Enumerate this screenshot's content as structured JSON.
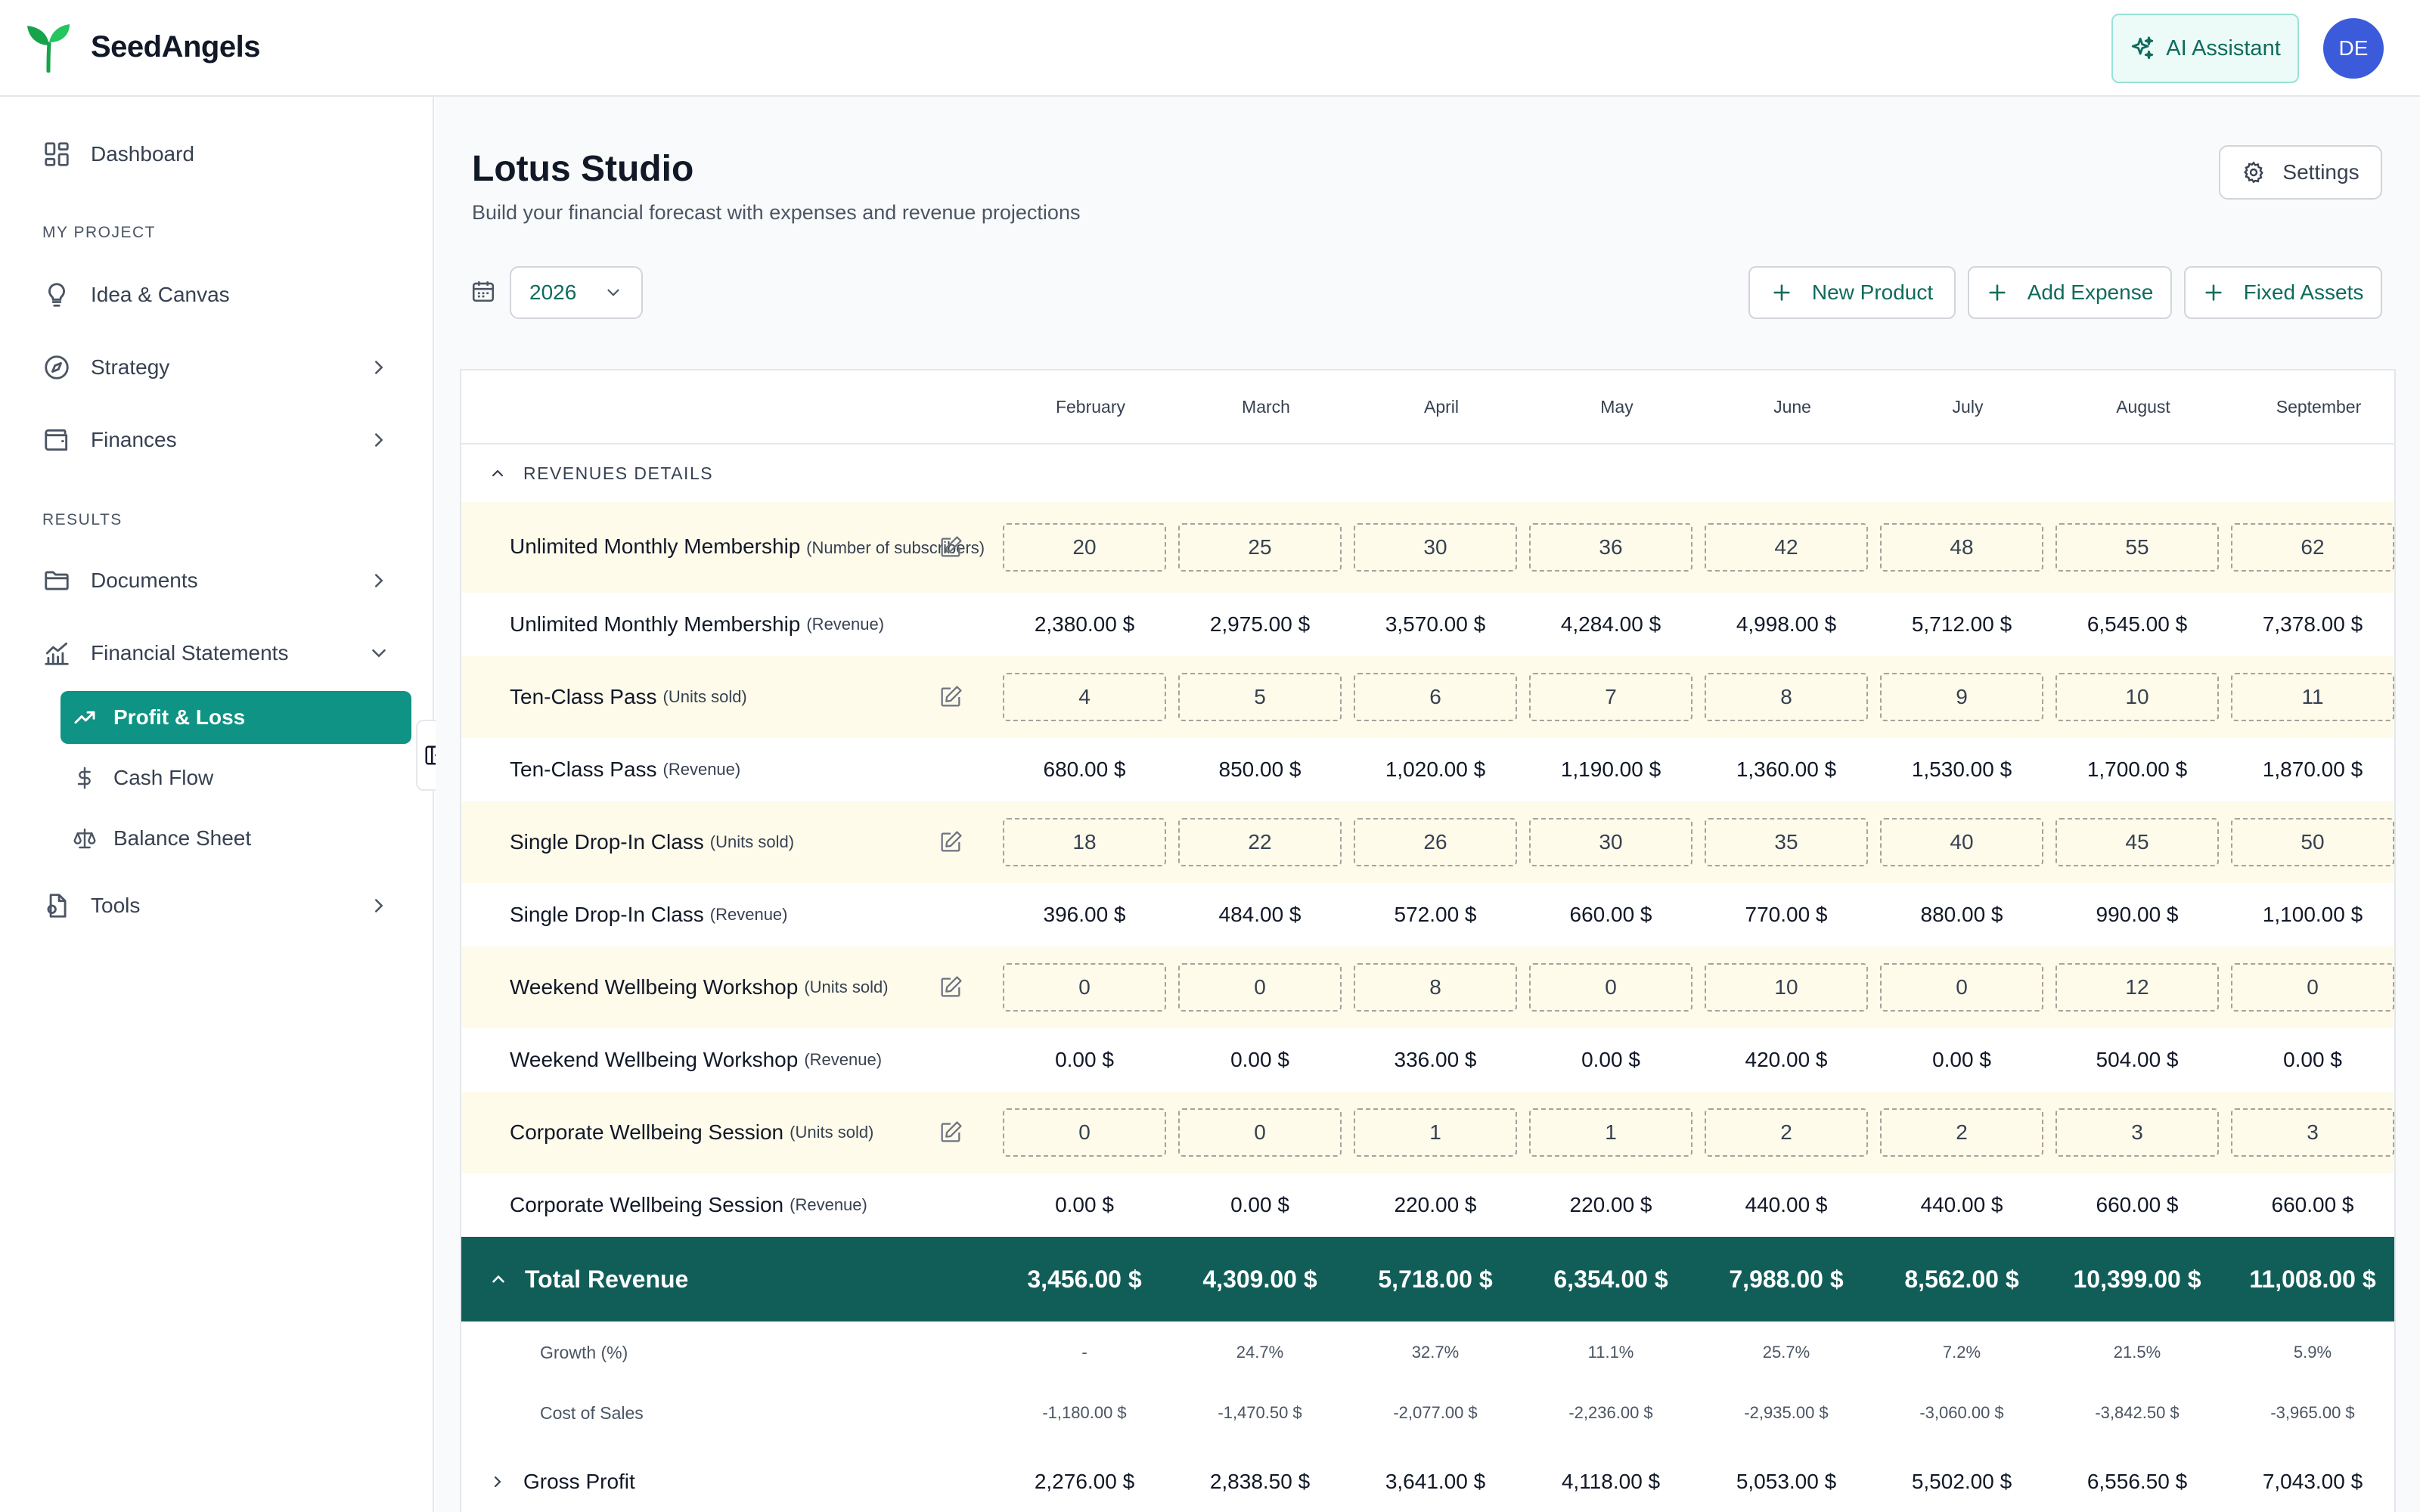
{
  "app": {
    "brand": "SeedAngels",
    "ai_assistant_label": "AI Assistant",
    "avatar_initials": "DE",
    "accent_color": "#0e9384",
    "total_row_color": "#115e59"
  },
  "sidebar": {
    "dashboard": "Dashboard",
    "section_my_project": "MY PROJECT",
    "idea_canvas": "Idea & Canvas",
    "strategy": "Strategy",
    "finances": "Finances",
    "section_results": "RESULTS",
    "documents": "Documents",
    "financial_statements": "Financial Statements",
    "profit_loss": "Profit & Loss",
    "cash_flow": "Cash Flow",
    "balance_sheet": "Balance Sheet",
    "tools": "Tools"
  },
  "page": {
    "title": "Lotus Studio",
    "subtitle": "Build your financial forecast with expenses and revenue projections",
    "settings_label": "Settings",
    "year": "2026",
    "new_product": "New Product",
    "add_expense": "Add Expense",
    "fixed_assets": "Fixed Assets"
  },
  "table": {
    "months": [
      "February",
      "March",
      "April",
      "May",
      "June",
      "July",
      "August",
      "September"
    ],
    "section_label": "REVENUES DETAILS",
    "rows": [
      {
        "type": "input",
        "name": "Unlimited Monthly Membership",
        "unit": "(Number of subscribers)",
        "values": [
          "20",
          "25",
          "30",
          "36",
          "42",
          "48",
          "55",
          "62"
        ]
      },
      {
        "type": "value",
        "name": "Unlimited Monthly Membership",
        "unit": "(Revenue)",
        "values": [
          "2,380.00 $",
          "2,975.00 $",
          "3,570.00 $",
          "4,284.00 $",
          "4,998.00 $",
          "5,712.00 $",
          "6,545.00 $",
          "7,378.00 $"
        ]
      },
      {
        "type": "input",
        "name": "Ten-Class Pass",
        "unit": "(Units sold)",
        "values": [
          "4",
          "5",
          "6",
          "7",
          "8",
          "9",
          "10",
          "11"
        ]
      },
      {
        "type": "value",
        "name": "Ten-Class Pass",
        "unit": "(Revenue)",
        "values": [
          "680.00 $",
          "850.00 $",
          "1,020.00 $",
          "1,190.00 $",
          "1,360.00 $",
          "1,530.00 $",
          "1,700.00 $",
          "1,870.00 $"
        ]
      },
      {
        "type": "input",
        "name": "Single Drop-In Class",
        "unit": "(Units sold)",
        "values": [
          "18",
          "22",
          "26",
          "30",
          "35",
          "40",
          "45",
          "50"
        ]
      },
      {
        "type": "value",
        "name": "Single Drop-In Class",
        "unit": "(Revenue)",
        "values": [
          "396.00 $",
          "484.00 $",
          "572.00 $",
          "660.00 $",
          "770.00 $",
          "880.00 $",
          "990.00 $",
          "1,100.00 $"
        ]
      },
      {
        "type": "input",
        "name": "Weekend Wellbeing Workshop",
        "unit": "(Units sold)",
        "values": [
          "0",
          "0",
          "8",
          "0",
          "10",
          "0",
          "12",
          "0"
        ]
      },
      {
        "type": "value",
        "name": "Weekend Wellbeing Workshop",
        "unit": "(Revenue)",
        "values": [
          "0.00 $",
          "0.00 $",
          "336.00 $",
          "0.00 $",
          "420.00 $",
          "0.00 $",
          "504.00 $",
          "0.00 $"
        ]
      },
      {
        "type": "input",
        "name": "Corporate Wellbeing Session",
        "unit": "(Units sold)",
        "values": [
          "0",
          "0",
          "1",
          "1",
          "2",
          "2",
          "3",
          "3"
        ]
      },
      {
        "type": "value",
        "name": "Corporate Wellbeing Session",
        "unit": "(Revenue)",
        "values": [
          "0.00 $",
          "0.00 $",
          "220.00 $",
          "220.00 $",
          "440.00 $",
          "440.00 $",
          "660.00 $",
          "660.00 $"
        ]
      }
    ],
    "total_revenue": {
      "label": "Total Revenue",
      "values": [
        "3,456.00 $",
        "4,309.00 $",
        "5,718.00 $",
        "6,354.00 $",
        "7,988.00 $",
        "8,562.00 $",
        "10,399.00 $",
        "11,008.00 $"
      ]
    },
    "growth": {
      "label": "Growth (%)",
      "values": [
        "-",
        "24.7%",
        "32.7%",
        "11.1%",
        "25.7%",
        "7.2%",
        "21.5%",
        "5.9%"
      ]
    },
    "cost_of_sales": {
      "label": "Cost of Sales",
      "values": [
        "-1,180.00 $",
        "-1,470.50 $",
        "-2,077.00 $",
        "-2,236.00 $",
        "-2,935.00 $",
        "-3,060.00 $",
        "-3,842.50 $",
        "-3,965.00 $"
      ]
    },
    "gross_profit": {
      "label": "Gross Profit",
      "values": [
        "2,276.00 $",
        "2,838.50 $",
        "3,641.00 $",
        "4,118.00 $",
        "5,053.00 $",
        "5,502.00 $",
        "6,556.50 $",
        "7,043.00 $"
      ]
    }
  }
}
